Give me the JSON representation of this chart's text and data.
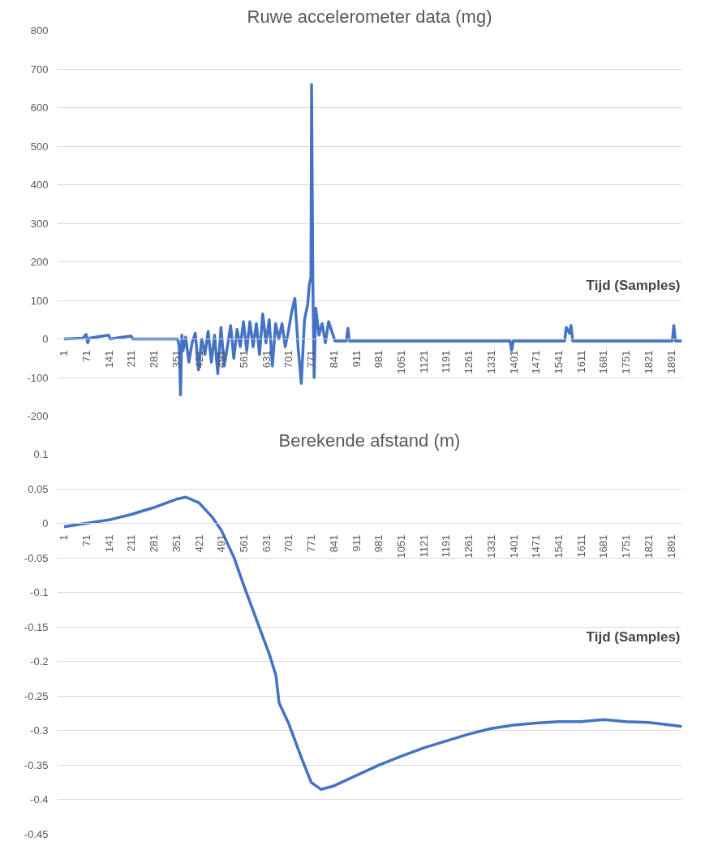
{
  "chart_data": [
    {
      "type": "line",
      "title": "Ruwe accelerometer data (mg)",
      "xlabel": "Tijd (Samples)",
      "xlim": [
        -20,
        1925
      ],
      "ylim": [
        -200,
        800
      ],
      "xticks": [
        1,
        71,
        141,
        211,
        281,
        351,
        421,
        491,
        561,
        631,
        701,
        771,
        841,
        911,
        981,
        1051,
        1121,
        1191,
        1261,
        1331,
        1401,
        1471,
        1541,
        1611,
        1681,
        1751,
        1821,
        1891
      ],
      "yticks": [
        -200,
        -100,
        0,
        100,
        200,
        300,
        400,
        500,
        600,
        700,
        800
      ],
      "grid": "y",
      "marker": "none",
      "line_style": "solid",
      "series": [
        {
          "color": "#4472c4",
          "x": [
            1,
            60,
            70,
            75,
            80,
            140,
            145,
            210,
            215,
            355,
            360,
            364,
            368,
            372,
            380,
            390,
            400,
            410,
            420,
            430,
            440,
            450,
            460,
            470,
            480,
            490,
            500,
            510,
            520,
            530,
            540,
            550,
            560,
            570,
            580,
            590,
            600,
            610,
            620,
            630,
            640,
            650,
            660,
            670,
            680,
            690,
            700,
            710,
            720,
            730,
            740,
            750,
            760,
            765,
            770,
            772,
            776,
            780,
            785,
            795,
            805,
            815,
            825,
            835,
            845,
            880,
            885,
            890,
            1390,
            1395,
            1400,
            1560,
            1565,
            1575,
            1580,
            1585,
            1895,
            1900,
            1905,
            1925
          ],
          "values": [
            0,
            2,
            12,
            -10,
            2,
            10,
            0,
            8,
            0,
            0,
            -20,
            -145,
            10,
            -30,
            5,
            -60,
            -10,
            15,
            -80,
            0,
            -40,
            20,
            -60,
            10,
            -90,
            30,
            -70,
            -20,
            35,
            -50,
            25,
            -20,
            45,
            -30,
            45,
            -20,
            40,
            -40,
            65,
            -10,
            50,
            -70,
            40,
            0,
            40,
            -20,
            20,
            70,
            105,
            -20,
            -115,
            50,
            90,
            140,
            160,
            660,
            150,
            -100,
            80,
            10,
            40,
            -10,
            45,
            20,
            -5,
            -5,
            28,
            -5,
            -5,
            -30,
            -5,
            -5,
            30,
            15,
            35,
            -5,
            -5,
            35,
            -5,
            -5
          ]
        }
      ]
    },
    {
      "type": "line",
      "title": "Berekende afstand (m)",
      "xlabel": "Tijd (Samples)",
      "xlim": [
        -20,
        1925
      ],
      "ylim": [
        -0.45,
        0.1
      ],
      "xticks": [
        1,
        71,
        141,
        211,
        281,
        351,
        421,
        491,
        561,
        631,
        701,
        771,
        841,
        911,
        981,
        1051,
        1121,
        1191,
        1261,
        1331,
        1401,
        1471,
        1541,
        1611,
        1681,
        1751,
        1821,
        1891
      ],
      "yticks": [
        -0.45,
        -0.4,
        -0.35,
        -0.3,
        -0.25,
        -0.2,
        -0.15,
        -0.1,
        -0.05,
        0,
        0.05,
        0.1
      ],
      "grid": "y",
      "marker": "none",
      "line_style": "solid",
      "series": [
        {
          "color": "#4472c4",
          "x": [
            1,
            71,
            141,
            211,
            281,
            351,
            381,
            421,
            461,
            491,
            531,
            561,
            601,
            641,
            661,
            671,
            701,
            741,
            771,
            801,
            841,
            911,
            981,
            1051,
            1121,
            1191,
            1261,
            1331,
            1401,
            1471,
            1541,
            1611,
            1681,
            1751,
            1821,
            1891,
            1925
          ],
          "values": [
            -0.005,
            0,
            0.005,
            0.013,
            0.023,
            0.035,
            0.038,
            0.03,
            0.01,
            -0.01,
            -0.05,
            -0.09,
            -0.14,
            -0.19,
            -0.22,
            -0.26,
            -0.29,
            -0.34,
            -0.375,
            -0.385,
            -0.38,
            -0.365,
            -0.35,
            -0.337,
            -0.325,
            -0.315,
            -0.305,
            -0.297,
            -0.292,
            -0.289,
            -0.287,
            -0.287,
            -0.284,
            -0.287,
            -0.288,
            -0.292,
            -0.294
          ]
        }
      ]
    }
  ]
}
